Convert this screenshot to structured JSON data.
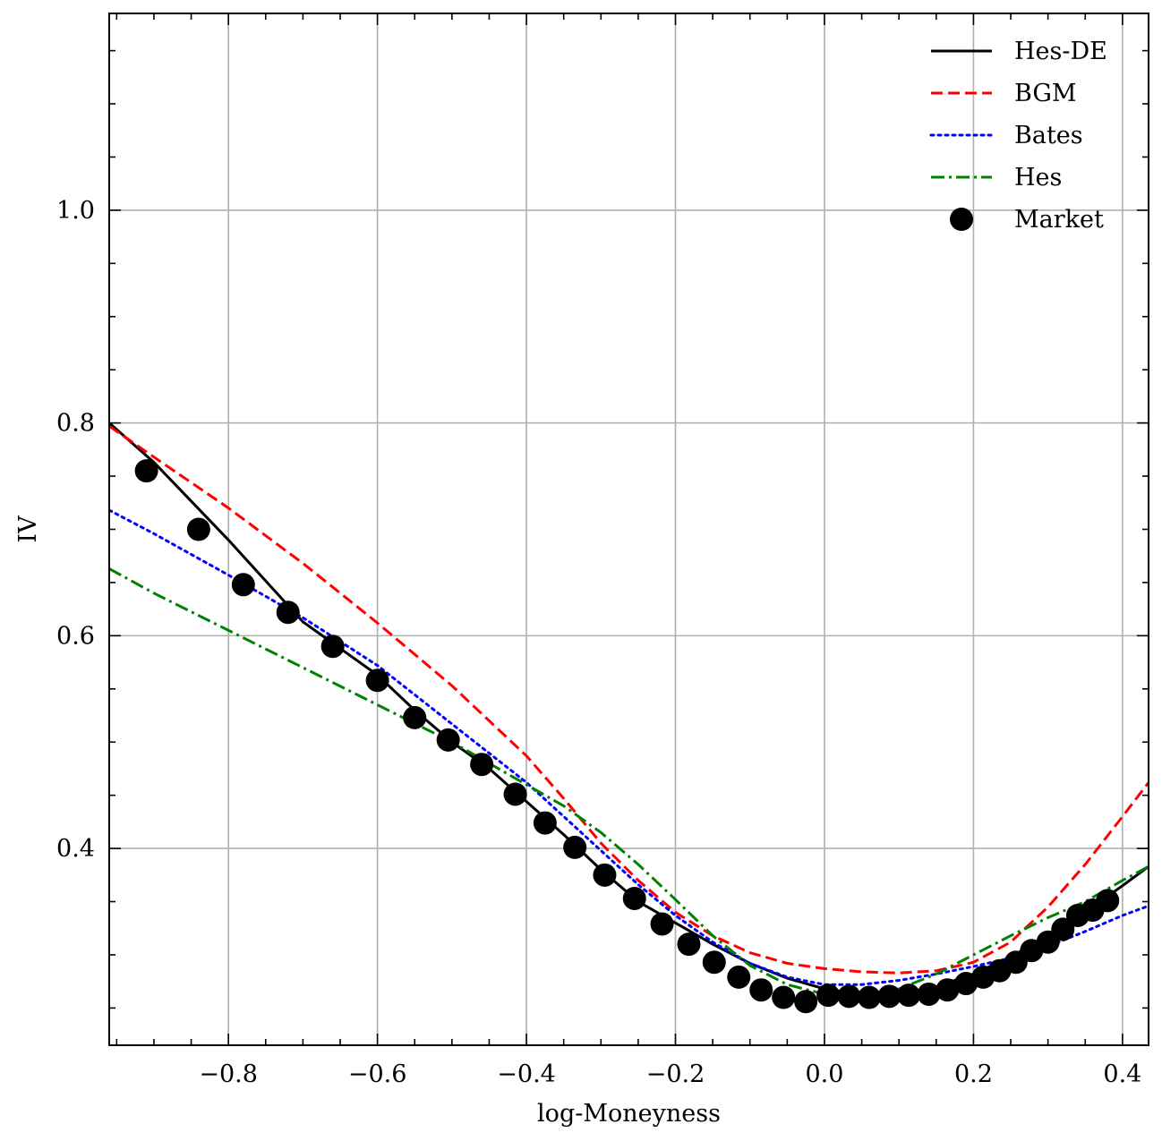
{
  "chart_data": {
    "type": "line",
    "title": "",
    "xlabel": "log-Moneyness",
    "ylabel": "IV",
    "xlim": [
      -0.96,
      0.435
    ],
    "ylim": [
      0.215,
      1.185
    ],
    "grid": true,
    "legend_position": "top-right",
    "x_ticks": [
      -0.8,
      -0.6,
      -0.4,
      -0.2,
      0.0,
      0.2,
      0.4
    ],
    "x_tick_labels": [
      "−0.8",
      "−0.6",
      "−0.4",
      "−0.2",
      "0.0",
      "0.2",
      "0.4"
    ],
    "y_ticks": [
      0.4,
      0.6,
      0.8,
      1.0
    ],
    "y_tick_labels": [
      "0.4",
      "0.6",
      "0.8",
      "1.0"
    ],
    "series": [
      {
        "name": "Hes-DE",
        "color": "#000000",
        "style": "solid",
        "x": [
          -0.96,
          -0.9,
          -0.8,
          -0.7,
          -0.6,
          -0.55,
          -0.5,
          -0.45,
          -0.4,
          -0.35,
          -0.3,
          -0.25,
          -0.2,
          -0.15,
          -0.1,
          -0.05,
          0.0,
          0.05,
          0.1,
          0.15,
          0.2,
          0.25,
          0.3,
          0.35,
          0.4,
          0.435
        ],
        "y": [
          0.8,
          0.763,
          0.69,
          0.613,
          0.563,
          0.53,
          0.5,
          0.475,
          0.444,
          0.413,
          0.38,
          0.35,
          0.33,
          0.31,
          0.292,
          0.278,
          0.268,
          0.263,
          0.263,
          0.27,
          0.282,
          0.298,
          0.318,
          0.34,
          0.365,
          0.383
        ]
      },
      {
        "name": "BGM",
        "color": "#ff0000",
        "style": "dashed",
        "x": [
          -0.96,
          -0.9,
          -0.8,
          -0.7,
          -0.6,
          -0.5,
          -0.4,
          -0.35,
          -0.3,
          -0.25,
          -0.2,
          -0.15,
          -0.1,
          -0.05,
          0.0,
          0.05,
          0.1,
          0.15,
          0.2,
          0.25,
          0.3,
          0.35,
          0.4,
          0.435
        ],
        "y": [
          0.797,
          0.768,
          0.72,
          0.668,
          0.612,
          0.553,
          0.487,
          0.447,
          0.405,
          0.37,
          0.34,
          0.318,
          0.302,
          0.292,
          0.287,
          0.284,
          0.283,
          0.285,
          0.293,
          0.312,
          0.345,
          0.385,
          0.43,
          0.462
        ]
      },
      {
        "name": "Bates",
        "color": "#0000ff",
        "style": "dotted",
        "x": [
          -0.96,
          -0.9,
          -0.8,
          -0.7,
          -0.6,
          -0.5,
          -0.4,
          -0.35,
          -0.3,
          -0.25,
          -0.2,
          -0.15,
          -0.1,
          -0.05,
          0.0,
          0.05,
          0.1,
          0.15,
          0.2,
          0.25,
          0.3,
          0.35,
          0.4,
          0.435
        ],
        "y": [
          0.718,
          0.696,
          0.657,
          0.617,
          0.572,
          0.517,
          0.462,
          0.43,
          0.398,
          0.366,
          0.337,
          0.312,
          0.292,
          0.279,
          0.272,
          0.272,
          0.276,
          0.282,
          0.289,
          0.297,
          0.308,
          0.322,
          0.337,
          0.346
        ]
      },
      {
        "name": "Hes",
        "color": "#008000",
        "style": "dashdot",
        "x": [
          -0.96,
          -0.9,
          -0.8,
          -0.7,
          -0.6,
          -0.5,
          -0.4,
          -0.35,
          -0.3,
          -0.25,
          -0.2,
          -0.15,
          -0.1,
          -0.05,
          0.0,
          0.05,
          0.1,
          0.15,
          0.2,
          0.25,
          0.3,
          0.35,
          0.4,
          0.435
        ],
        "y": [
          0.663,
          0.64,
          0.605,
          0.57,
          0.535,
          0.5,
          0.46,
          0.44,
          0.415,
          0.385,
          0.352,
          0.318,
          0.29,
          0.272,
          0.263,
          0.262,
          0.268,
          0.282,
          0.3,
          0.318,
          0.335,
          0.35,
          0.37,
          0.383
        ]
      }
    ],
    "scatter": {
      "name": "Market",
      "color": "#000000",
      "x": [
        -0.91,
        -0.84,
        -0.78,
        -0.72,
        -0.66,
        -0.6,
        -0.55,
        -0.505,
        -0.46,
        -0.415,
        -0.375,
        -0.335,
        -0.295,
        -0.255,
        -0.218,
        -0.182,
        -0.148,
        -0.115,
        -0.085,
        -0.055,
        -0.025,
        0.005,
        0.033,
        0.06,
        0.087,
        0.113,
        0.14,
        0.165,
        0.19,
        0.213,
        0.235,
        0.257,
        0.278,
        0.3,
        0.32,
        0.34,
        0.36,
        0.38
      ],
      "y": [
        0.755,
        0.7,
        0.648,
        0.622,
        0.59,
        0.558,
        0.523,
        0.502,
        0.479,
        0.451,
        0.424,
        0.401,
        0.375,
        0.353,
        0.329,
        0.31,
        0.293,
        0.279,
        0.267,
        0.26,
        0.256,
        0.262,
        0.261,
        0.26,
        0.261,
        0.262,
        0.263,
        0.267,
        0.273,
        0.279,
        0.285,
        0.293,
        0.304,
        0.312,
        0.324,
        0.337,
        0.342,
        0.351
      ]
    }
  }
}
